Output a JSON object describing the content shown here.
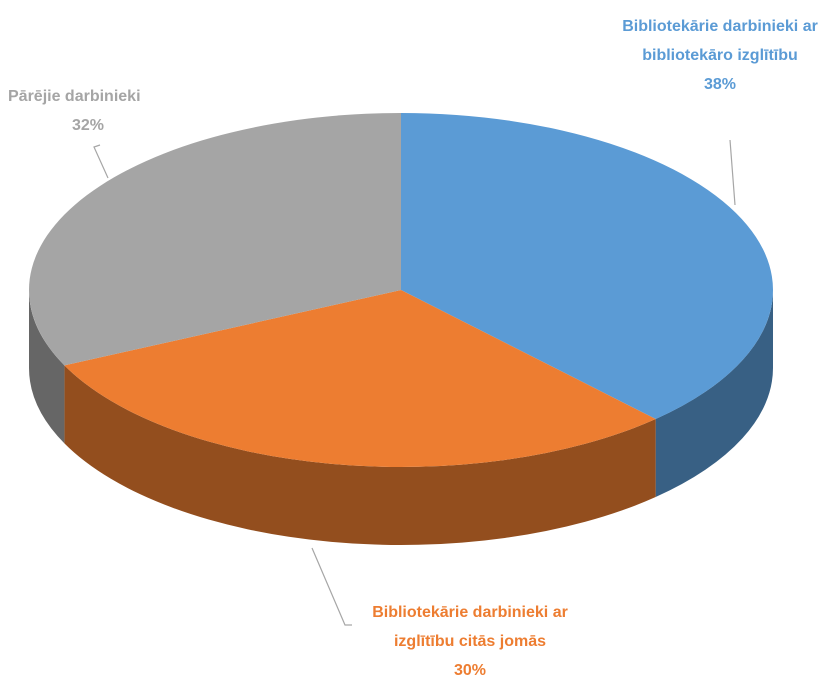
{
  "chart_data": {
    "type": "pie3d",
    "categories": [
      "Bibliotekārie darbinieki ar bibliotekāro izglītību",
      "Bibliotekārie darbinieki ar izglītību citās jomās",
      "Pārējie darbinieki"
    ],
    "values": [
      38,
      30,
      32
    ],
    "value_labels": [
      "38%",
      "30%",
      "32%"
    ],
    "colors": [
      "#5b9bd5",
      "#ed7d31",
      "#a5a5a5"
    ]
  }
}
